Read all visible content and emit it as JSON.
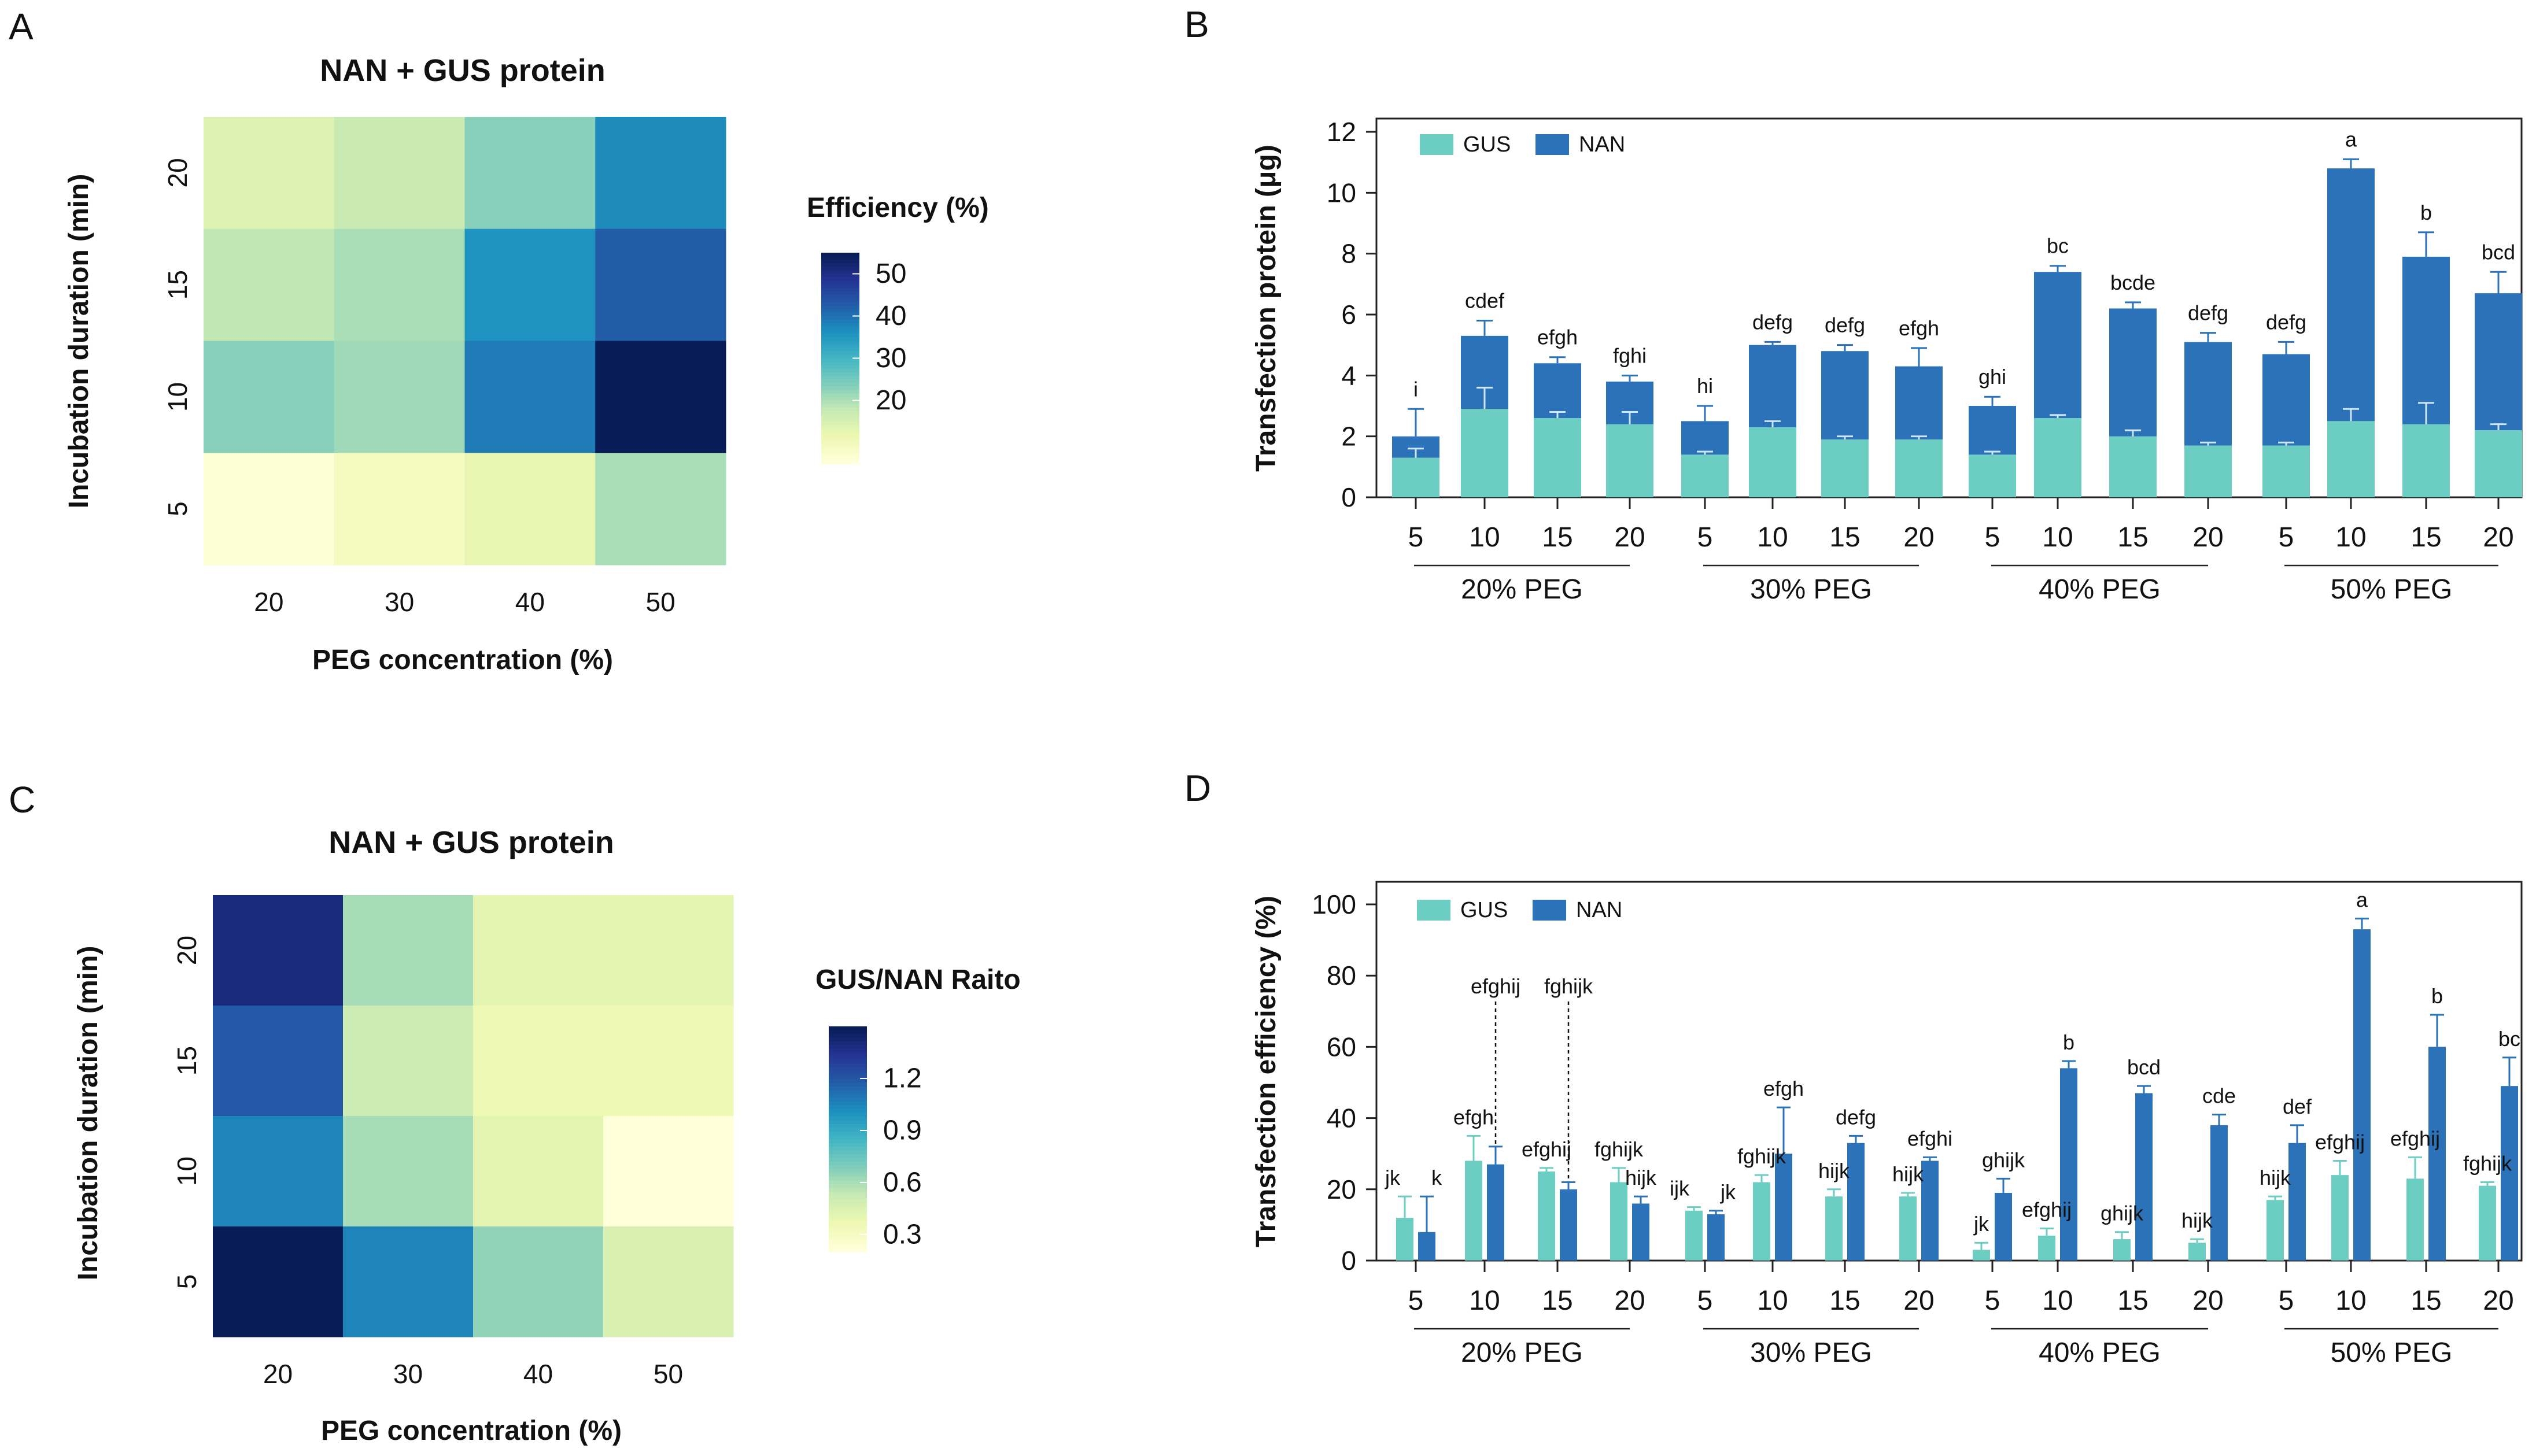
{
  "chart_data": [
    {
      "panel": "A",
      "type": "heatmap",
      "title": "NAN + GUS protein",
      "xlabel": "PEG concentration (%)",
      "ylabel": "Incubation duration (min)",
      "x_categories": [
        "20",
        "30",
        "40",
        "50"
      ],
      "y_categories": [
        "20",
        "15",
        "10",
        "5"
      ],
      "values": [
        [
          14,
          17,
          23,
          37
        ],
        [
          18,
          20,
          36,
          43
        ],
        [
          23,
          21,
          39,
          55
        ],
        [
          6,
          9,
          12,
          20
        ]
      ],
      "colorbar": {
        "title": "Efficiency (%)",
        "ticks": [
          "50",
          "40",
          "30",
          "20"
        ],
        "range": [
          5,
          55
        ],
        "tick_values": [
          50,
          40,
          30,
          20
        ]
      }
    },
    {
      "panel": "B",
      "type": "bar",
      "stacked": true,
      "ylabel": "Transfection protein  (μg)",
      "ylim": [
        0,
        12
      ],
      "yticks": [
        "0",
        "2",
        "4",
        "6",
        "8",
        "10",
        "12"
      ],
      "categories": [
        "5",
        "10",
        "15",
        "20",
        "5",
        "10",
        "15",
        "20",
        "5",
        "10",
        "15",
        "20",
        "5",
        "10",
        "15",
        "20"
      ],
      "groups": [
        "20% PEG",
        "30% PEG",
        "40% PEG",
        "50% PEG"
      ],
      "legend": [
        "GUS",
        "NAN"
      ],
      "series": [
        {
          "name": "GUS",
          "values": [
            1.3,
            2.9,
            2.6,
            2.4,
            1.4,
            2.3,
            1.9,
            1.9,
            1.4,
            2.6,
            2.0,
            1.7,
            1.7,
            2.5,
            2.4,
            2.2
          ]
        },
        {
          "name": "NAN",
          "values": [
            0.7,
            2.4,
            1.8,
            1.4,
            1.1,
            2.7,
            2.9,
            2.4,
            1.6,
            4.8,
            4.2,
            3.4,
            3.0,
            8.3,
            5.5,
            4.5
          ]
        }
      ],
      "gus_err": [
        0.3,
        0.7,
        0.2,
        0.4,
        0.1,
        0.2,
        0.1,
        0.1,
        0.1,
        0.1,
        0.2,
        0.1,
        0.1,
        0.4,
        0.7,
        0.2
      ],
      "total_err": [
        0.9,
        0.5,
        0.2,
        0.2,
        0.5,
        0.1,
        0.2,
        0.6,
        0.3,
        0.2,
        0.2,
        0.3,
        0.4,
        0.3,
        0.8,
        0.7
      ],
      "letters": [
        "i",
        "cdef",
        "efgh",
        "fghi",
        "hi",
        "defg",
        "defg",
        "efgh",
        "ghi",
        "bc",
        "bcde",
        "defg",
        "defg",
        "a",
        "b",
        "bcd"
      ]
    },
    {
      "panel": "C",
      "type": "heatmap",
      "title": "NAN + GUS protein",
      "xlabel": "PEG concentration (%)",
      "ylabel": "Incubation duration (min)",
      "x_categories": [
        "20",
        "30",
        "40",
        "50"
      ],
      "y_categories": [
        "20",
        "15",
        "10",
        "5"
      ],
      "values": [
        [
          1.4,
          0.6,
          0.4,
          0.4
        ],
        [
          1.2,
          0.5,
          0.35,
          0.35
        ],
        [
          1.05,
          0.6,
          0.4,
          0.2
        ],
        [
          1.5,
          1.05,
          0.65,
          0.45
        ]
      ],
      "colorbar": {
        "title": "GUS/NAN Raito",
        "ticks": [
          "1.2",
          "0.9",
          "0.6",
          "0.3"
        ],
        "range": [
          0.2,
          1.5
        ],
        "tick_values": [
          1.2,
          0.9,
          0.6,
          0.3
        ]
      }
    },
    {
      "panel": "D",
      "type": "bar",
      "stacked": false,
      "ylabel": "Transfection efficiency  (%)",
      "ylim": [
        0,
        100
      ],
      "yticks": [
        "0",
        "20",
        "40",
        "60",
        "80",
        "100"
      ],
      "categories": [
        "5",
        "10",
        "15",
        "20",
        "5",
        "10",
        "15",
        "20",
        "5",
        "10",
        "15",
        "20",
        "5",
        "10",
        "15",
        "20"
      ],
      "groups": [
        "20% PEG",
        "30% PEG",
        "40% PEG",
        "50% PEG"
      ],
      "legend": [
        "GUS",
        "NAN"
      ],
      "series": [
        {
          "name": "GUS",
          "values": [
            12,
            28,
            25,
            22,
            14,
            22,
            18,
            18,
            3,
            7,
            6,
            5,
            17,
            24,
            23,
            21
          ]
        },
        {
          "name": "NAN",
          "values": [
            8,
            27,
            20,
            16,
            13,
            30,
            33,
            28,
            19,
            54,
            47,
            38,
            33,
            93,
            60,
            49
          ]
        }
      ],
      "gus_err": [
        6,
        7,
        1,
        4,
        1,
        2,
        2,
        1,
        2,
        2,
        2,
        1,
        1,
        4,
        6,
        1
      ],
      "nan_err": [
        10,
        5,
        2,
        2,
        1,
        13,
        2,
        1,
        4,
        2,
        2,
        3,
        5,
        3,
        9,
        8
      ],
      "gus_letters": [
        "jk",
        "efgh",
        "efghij",
        "fghijk",
        "ijk",
        "fghijk",
        "hijk",
        "hijk",
        "jk",
        "efghij",
        "ghijk",
        "hijk",
        "hijk",
        "efghij",
        "efghij",
        "fghijk"
      ],
      "nan_letters": [
        "k",
        "efghij",
        "fghijk",
        "hijk",
        "jk",
        "efgh",
        "defg",
        "efghi",
        "ghijk",
        "b",
        "bcd",
        "cde",
        "def",
        "a",
        "b",
        "bc"
      ],
      "nan_letter_dashed": [
        false,
        true,
        true,
        false,
        false,
        false,
        false,
        false,
        false,
        false,
        false,
        false,
        false,
        false,
        false,
        false
      ]
    }
  ],
  "panel_letters": {
    "a": "A",
    "b": "B",
    "c": "C",
    "d": "D"
  },
  "colors": {
    "gus": "#6ccdc3",
    "nan": "#2b72b8"
  }
}
